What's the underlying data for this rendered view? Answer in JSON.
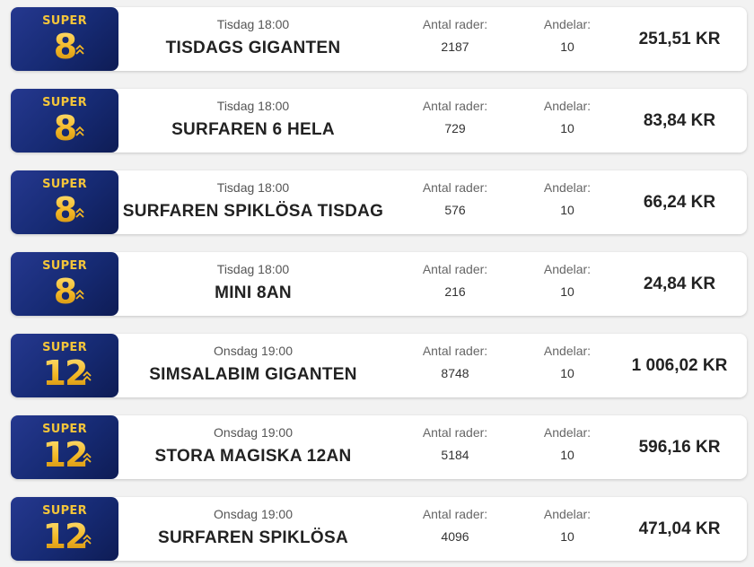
{
  "labels": {
    "rows": "Antal rader:",
    "shares": "Andelar:"
  },
  "colors": {
    "badge_bg": "#162a73",
    "badge_gold": "#f0b92c"
  },
  "icons": {
    "badge_logo": "super-logo-icon",
    "chevron": "double-chevron-up-icon"
  },
  "items": [
    {
      "badge": {
        "brand": "SUPER",
        "number": "8"
      },
      "time": "Tisdag 18:00",
      "name": "TISDAGS GIGANTEN",
      "rows": "2187",
      "shares": "10",
      "price": "251,51 KR"
    },
    {
      "badge": {
        "brand": "SUPER",
        "number": "8"
      },
      "time": "Tisdag 18:00",
      "name": "SURFAREN 6 HELA",
      "rows": "729",
      "shares": "10",
      "price": "83,84 KR"
    },
    {
      "badge": {
        "brand": "SUPER",
        "number": "8"
      },
      "time": "Tisdag 18:00",
      "name": "SURFAREN SPIKLÖSA TISDAG",
      "rows": "576",
      "shares": "10",
      "price": "66,24 KR"
    },
    {
      "badge": {
        "brand": "SUPER",
        "number": "8"
      },
      "time": "Tisdag 18:00",
      "name": "MINI 8AN",
      "rows": "216",
      "shares": "10",
      "price": "24,84 KR"
    },
    {
      "badge": {
        "brand": "SUPER",
        "number": "12"
      },
      "time": "Onsdag 19:00",
      "name": "SIMSALABIM GIGANTEN",
      "rows": "8748",
      "shares": "10",
      "price": "1 006,02 KR"
    },
    {
      "badge": {
        "brand": "SUPER",
        "number": "12"
      },
      "time": "Onsdag 19:00",
      "name": "STORA MAGISKA 12AN",
      "rows": "5184",
      "shares": "10",
      "price": "596,16 KR"
    },
    {
      "badge": {
        "brand": "SUPER",
        "number": "12"
      },
      "time": "Onsdag 19:00",
      "name": "SURFAREN SPIKLÖSA",
      "rows": "4096",
      "shares": "10",
      "price": "471,04 KR"
    }
  ]
}
